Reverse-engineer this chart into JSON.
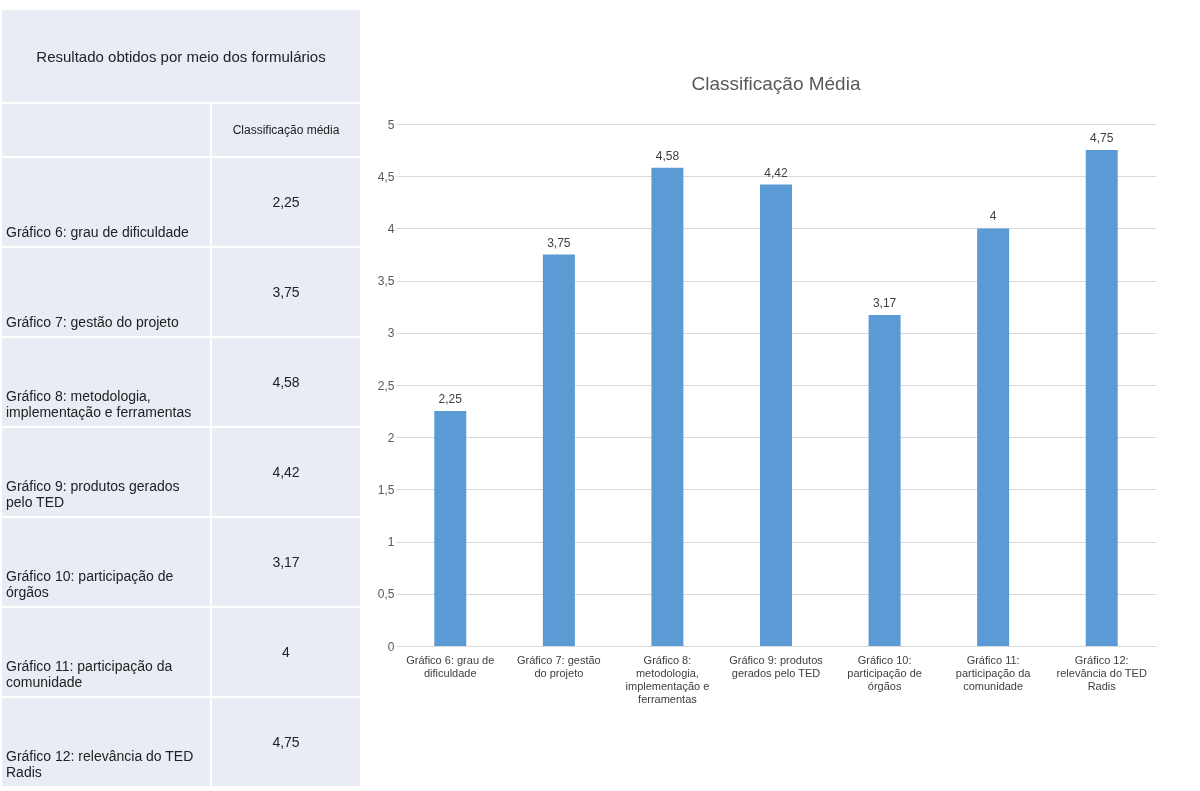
{
  "chart_data": {
    "type": "bar",
    "title": "Classificação Média",
    "categories": [
      "Gráfico 6: grau de dificuldade",
      "Gráfico 7: gestão do projeto",
      "Gráfico 8: metodologia, implementação e ferramentas",
      "Gráfico 9: produtos gerados pelo TED",
      "Gráfico 10: participação de órgãos",
      "Gráfico 11: participação da comunidade",
      "Gráfico 12: relevância do TED Radis"
    ],
    "values": [
      2.25,
      3.75,
      4.58,
      4.42,
      3.17,
      4,
      4.75
    ],
    "color": "#5b9bd5",
    "value_labels": [
      "2,25",
      "3,75",
      "4,58",
      "4,42",
      "3,17",
      "4",
      "4,75"
    ],
    "ylim": [
      0,
      5
    ],
    "yticks": [
      0,
      {
        "value": 0.5,
        "label": "0,5"
      },
      1,
      {
        "value": 1.5,
        "label": "1,5"
      },
      2,
      {
        "value": 2.5,
        "label": "2,5"
      },
      3,
      {
        "value": 3.5,
        "label": "3,5"
      },
      4,
      {
        "value": 4.5,
        "label": "4,5"
      },
      5
    ],
    "grid": "y",
    "annotations": [
      "Resultado obtidos por meio dos formulários",
      "Classificação média"
    ]
  }
}
